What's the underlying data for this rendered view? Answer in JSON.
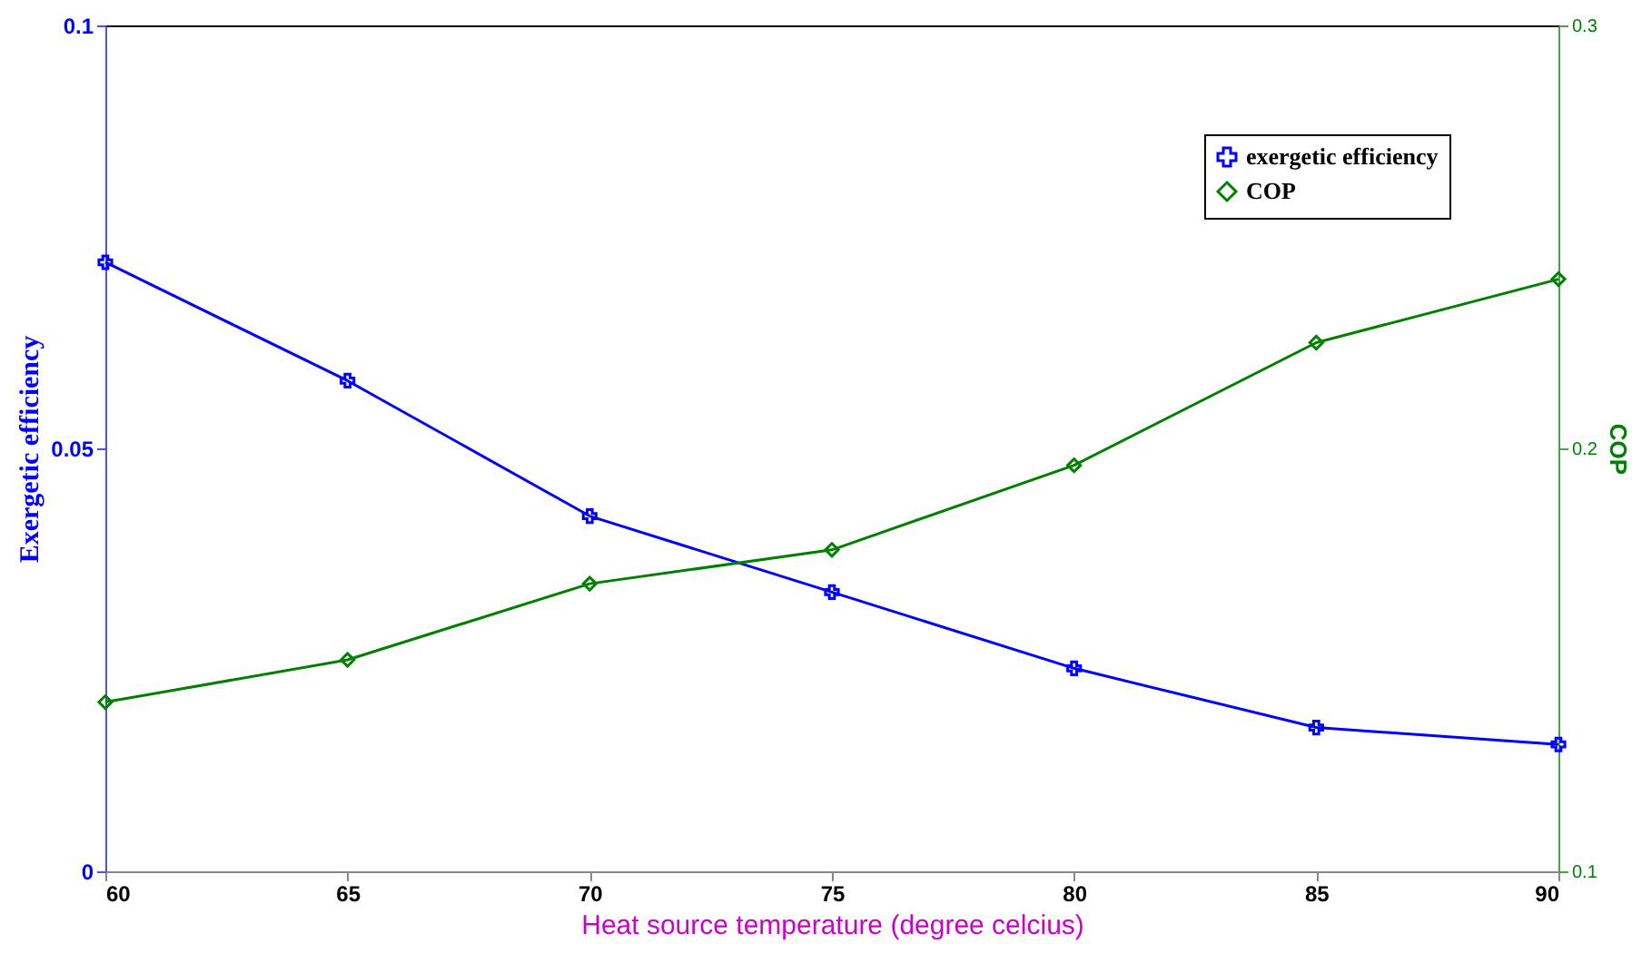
{
  "chart_data": {
    "type": "line",
    "xlabel": "Heat source temperature (degree celcius)",
    "ylabel": "Exergetic efficiency",
    "y2label": "COP",
    "x": [
      60,
      65,
      70,
      75,
      80,
      85,
      90
    ],
    "series": [
      {
        "name": "exergetic efficiency",
        "color": "#0000ff",
        "marker": "cross",
        "values": [
          0.072,
          0.058,
          0.042,
          0.033,
          0.024,
          0.017,
          0.015
        ]
      },
      {
        "name": "COP",
        "color": "#008000",
        "marker": "diamond",
        "axis": "y2",
        "values": [
          0.14,
          0.15,
          0.168,
          0.176,
          0.196,
          0.225,
          0.24
        ]
      }
    ],
    "xlim": [
      60,
      90
    ],
    "xticks": [
      60,
      65,
      70,
      75,
      80,
      85,
      90
    ],
    "ylim": [
      0,
      0.1
    ],
    "yticks": [
      0,
      0.05,
      0.1
    ],
    "y2lim": [
      0.1,
      0.3
    ],
    "y2ticks": [
      0.1,
      0.2,
      0.3
    ],
    "grid": false,
    "legend": "top right",
    "line_style": "solid"
  }
}
